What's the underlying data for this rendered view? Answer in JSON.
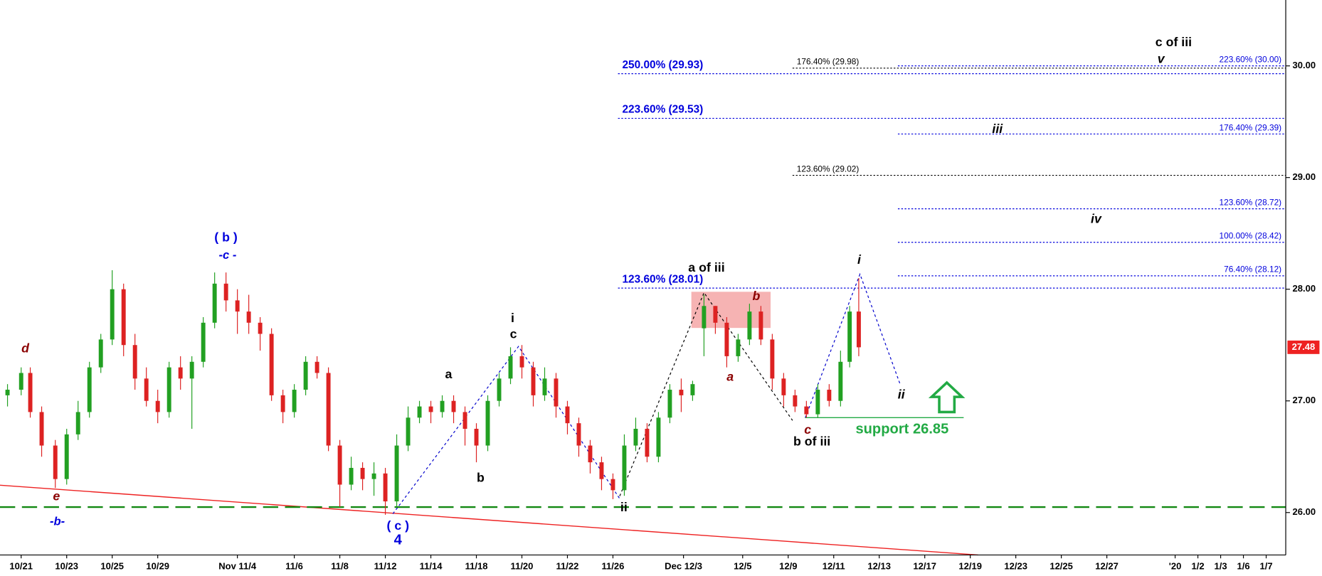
{
  "chart_data": {
    "type": "candlestick",
    "up_color": "#22a022",
    "down_color": "#dd2222",
    "x": [
      -0.6,
      0.0,
      0.4,
      0.9,
      1.5,
      2.0,
      2.5,
      3.0,
      3.5,
      4.0,
      4.5,
      5.0,
      5.5,
      6.0,
      6.5,
      7.0,
      7.5,
      8.0,
      8.5,
      9.0,
      9.5,
      10.0,
      10.5,
      11.0,
      11.5,
      12.0,
      12.5,
      13.0,
      13.5,
      14.0,
      14.5,
      15.0,
      15.5,
      16.0,
      16.5,
      17.0,
      17.5,
      18.0,
      18.5,
      19.0,
      19.5,
      20.0,
      20.5,
      21.0,
      21.5,
      22.0,
      22.5,
      23.0,
      23.5,
      24.0,
      24.5,
      25.0,
      25.5,
      26.0,
      26.5,
      27.0,
      27.5,
      28.0,
      28.5,
      29.0,
      29.5,
      30.0,
      30.5,
      31.0,
      31.5,
      32.0,
      32.5,
      33.0,
      33.5,
      34.0,
      34.5,
      35.0,
      35.5,
      36.0,
      36.4,
      36.8
    ],
    "open": [
      27.05,
      27.1,
      27.25,
      26.9,
      26.6,
      26.3,
      26.7,
      26.9,
      27.3,
      27.55,
      28.0,
      27.5,
      27.2,
      27.0,
      26.9,
      27.3,
      27.2,
      27.35,
      27.7,
      28.05,
      27.9,
      27.8,
      27.7,
      27.6,
      27.05,
      26.9,
      27.1,
      27.35,
      27.25,
      26.6,
      26.25,
      26.4,
      26.3,
      26.35,
      26.1,
      26.6,
      26.85,
      26.95,
      26.9,
      27.0,
      26.9,
      26.75,
      26.6,
      27.0,
      27.2,
      27.4,
      27.3,
      27.05,
      27.2,
      26.95,
      26.8,
      26.6,
      26.45,
      26.3,
      26.2,
      26.6,
      26.75,
      26.5,
      26.85,
      27.1,
      27.05,
      27.65,
      27.85,
      27.7,
      27.4,
      27.55,
      27.8,
      27.55,
      27.2,
      27.05,
      26.95,
      26.88,
      27.1,
      27.0,
      27.35,
      27.8
    ],
    "high": [
      27.15,
      27.3,
      27.3,
      26.95,
      26.65,
      26.75,
      27.0,
      27.35,
      27.6,
      28.17,
      28.05,
      27.6,
      27.3,
      27.1,
      27.35,
      27.4,
      27.4,
      27.75,
      28.15,
      28.15,
      28.0,
      27.95,
      27.75,
      27.65,
      27.1,
      27.15,
      27.4,
      27.4,
      27.3,
      26.65,
      26.5,
      26.45,
      26.45,
      26.4,
      26.7,
      26.95,
      27.0,
      27.0,
      27.05,
      27.05,
      26.95,
      26.8,
      27.05,
      27.25,
      27.48,
      27.5,
      27.35,
      27.3,
      27.25,
      27.0,
      26.85,
      26.65,
      26.5,
      26.35,
      26.7,
      26.85,
      26.8,
      26.9,
      27.15,
      27.2,
      27.18,
      27.95,
      27.85,
      27.75,
      27.6,
      27.87,
      27.85,
      27.6,
      27.25,
      27.1,
      27.0,
      27.15,
      27.15,
      27.45,
      27.85,
      28.1
    ],
    "low": [
      26.95,
      27.05,
      26.85,
      26.5,
      26.22,
      26.25,
      26.65,
      26.85,
      27.25,
      27.5,
      27.4,
      27.1,
      26.95,
      26.8,
      26.85,
      27.1,
      26.75,
      27.3,
      27.65,
      27.8,
      27.6,
      27.6,
      27.45,
      27.0,
      26.8,
      26.85,
      27.05,
      27.2,
      26.55,
      26.05,
      26.2,
      26.2,
      26.15,
      25.98,
      26.05,
      26.55,
      26.8,
      26.8,
      26.85,
      26.8,
      26.6,
      26.45,
      26.55,
      26.95,
      27.15,
      27.2,
      26.95,
      27.0,
      26.85,
      26.7,
      26.5,
      26.35,
      26.2,
      26.12,
      26.15,
      26.55,
      26.45,
      26.45,
      26.8,
      26.9,
      27.0,
      27.4,
      27.6,
      27.3,
      27.35,
      27.5,
      27.5,
      27.1,
      26.95,
      26.9,
      26.85,
      26.85,
      26.95,
      26.95,
      27.3,
      27.4
    ],
    "close": [
      27.1,
      27.25,
      26.9,
      26.6,
      26.3,
      26.7,
      26.9,
      27.3,
      27.55,
      28.0,
      27.5,
      27.2,
      27.0,
      26.9,
      27.3,
      27.2,
      27.35,
      27.7,
      28.05,
      27.9,
      27.8,
      27.7,
      27.6,
      27.05,
      26.9,
      27.1,
      27.35,
      27.25,
      26.6,
      26.25,
      26.4,
      26.3,
      26.35,
      26.1,
      26.6,
      26.85,
      26.95,
      26.9,
      27.0,
      26.9,
      26.75,
      26.6,
      27.0,
      27.2,
      27.4,
      27.3,
      27.05,
      27.2,
      26.95,
      26.8,
      26.6,
      26.45,
      26.3,
      26.2,
      26.6,
      26.75,
      26.5,
      26.85,
      27.1,
      27.05,
      27.15,
      27.85,
      27.7,
      27.4,
      27.55,
      27.8,
      27.55,
      27.2,
      27.05,
      26.95,
      26.88,
      27.1,
      27.0,
      27.35,
      27.8,
      27.48
    ],
    "xlim": [
      -0.93,
      55.56
    ],
    "xticks": [
      {
        "value": 0,
        "label": "10/21"
      },
      {
        "value": 2,
        "label": "10/23"
      },
      {
        "value": 4,
        "label": "10/25"
      },
      {
        "value": 6,
        "label": "10/29"
      },
      {
        "value": 9.5,
        "label": "Nov 11/4"
      },
      {
        "value": 12,
        "label": "11/6"
      },
      {
        "value": 14,
        "label": "11/8"
      },
      {
        "value": 16,
        "label": "11/12"
      },
      {
        "value": 18,
        "label": "11/14"
      },
      {
        "value": 20,
        "label": "11/18"
      },
      {
        "value": 22,
        "label": "11/20"
      },
      {
        "value": 24,
        "label": "11/22"
      },
      {
        "value": 26,
        "label": "11/26"
      },
      {
        "value": 29.1,
        "label": "Dec 12/3"
      },
      {
        "value": 31.7,
        "label": "12/5"
      },
      {
        "value": 33.7,
        "label": "12/9"
      },
      {
        "value": 35.7,
        "label": "12/11"
      },
      {
        "value": 37.7,
        "label": "12/13"
      },
      {
        "value": 39.7,
        "label": "12/17"
      },
      {
        "value": 41.7,
        "label": "12/19"
      },
      {
        "value": 43.7,
        "label": "12/23"
      },
      {
        "value": 45.7,
        "label": "12/25"
      },
      {
        "value": 47.7,
        "label": "12/27"
      },
      {
        "value": 50.7,
        "label": "'20"
      },
      {
        "value": 51.7,
        "label": "1/2"
      },
      {
        "value": 52.7,
        "label": "1/3"
      },
      {
        "value": 53.7,
        "label": "1/6"
      },
      {
        "value": 54.7,
        "label": "1/7"
      }
    ],
    "ylim": [
      25.62,
      30.59
    ],
    "yticks": [
      {
        "value": 26,
        "label": "26.00"
      },
      {
        "value": 27,
        "label": "27.00"
      },
      {
        "value": 28,
        "label": "28.00"
      },
      {
        "value": 29,
        "label": "29.00"
      },
      {
        "value": 30,
        "label": "30.00"
      }
    ],
    "last_price": 27.48,
    "last_price_color": "#ee2222",
    "fib_levels": [
      {
        "label": "250.00% (29.93)",
        "value": 29.93,
        "color": "#0000dd"
      },
      {
        "label": "176.40% (29.98)",
        "value": 29.98,
        "color": "#000000"
      },
      {
        "label": "223.60% (30.00)",
        "value": 30.0,
        "color": "#0000dd"
      },
      {
        "label": "223.60% (29.53)",
        "value": 29.53,
        "color": "#0000dd"
      },
      {
        "label": "176.40% (29.39)",
        "value": 29.39,
        "color": "#0000dd"
      },
      {
        "label": "123.60% (29.02)",
        "value": 29.02,
        "color": "#000000"
      },
      {
        "label": "123.60% (28.72)",
        "value": 28.72,
        "color": "#0000dd"
      },
      {
        "label": "100.00% (28.42)",
        "value": 28.42,
        "color": "#0000dd"
      },
      {
        "label": "76.40% (28.12)",
        "value": 28.12,
        "color": "#0000dd"
      },
      {
        "label": "123.60% (28.01)",
        "value": 28.01,
        "color": "#0000dd"
      }
    ],
    "support": {
      "label": "support 26.85",
      "value": 26.85,
      "color": "#22aa44"
    },
    "annotations": [
      {
        "text": "d",
        "color": "#8b0000"
      },
      {
        "text": "e",
        "color": "#8b0000"
      },
      {
        "text": "-b-",
        "color": "#0000dd"
      },
      {
        "text": "( b )",
        "color": "#0000dd"
      },
      {
        "text": "-c -",
        "color": "#0000dd"
      },
      {
        "text": "( c )",
        "color": "#0000dd"
      },
      {
        "text": "4",
        "color": "#0000dd"
      },
      {
        "text": "a",
        "color": "#000000"
      },
      {
        "text": "b",
        "color": "#000000"
      },
      {
        "text": "i",
        "color": "#000000"
      },
      {
        "text": "c",
        "color": "#000000"
      },
      {
        "text": "ii",
        "color": "#000000"
      },
      {
        "text": "a of iii",
        "color": "#000000"
      },
      {
        "text": "a",
        "color": "#8b0000"
      },
      {
        "text": "b",
        "color": "#8b0000"
      },
      {
        "text": "c",
        "color": "#8b0000"
      },
      {
        "text": "b of iii",
        "color": "#000000"
      },
      {
        "text": "i",
        "color": "#000000"
      },
      {
        "text": "ii",
        "color": "#000000"
      },
      {
        "text": "iii",
        "color": "#000000"
      },
      {
        "text": "iv",
        "color": "#000000"
      },
      {
        "text": "v",
        "color": "#000000"
      },
      {
        "text": "c of iii",
        "color": "#000000"
      }
    ]
  }
}
